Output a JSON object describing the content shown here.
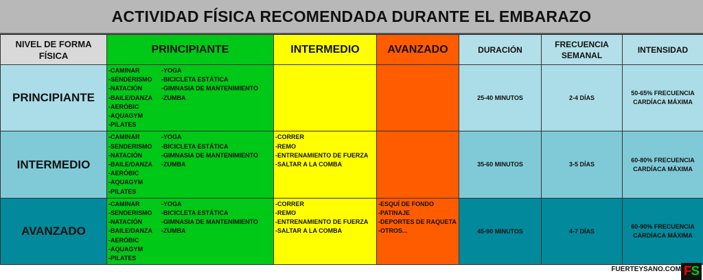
{
  "title": "ACTIVIDAD FÍSICA RECOMENDADA DURANTE EL EMBARAZO",
  "headers": [
    "NIVEL DE FORMA FÍSICA",
    "PRINCIPIANTE",
    "INTERMEDIO",
    "AVANZADO",
    "DURACIÓN",
    "FRECUENCIA SEMANAL",
    "INTENSIDAD"
  ],
  "colors": {
    "principiante": "#00c817",
    "intermedio": "#ffff00",
    "avanzado": "#ff5c00"
  },
  "lists": {
    "principiante_a": [
      "-CAMINAR",
      "-SENDERISMO",
      "-NATACIÓN",
      "-BAILE/DANZA",
      "-AERÓBIC",
      "-AQUAGYM",
      "-PILATES"
    ],
    "principiante_b": [
      "-YOGA",
      "-BICICLETA ESTÁTICA",
      "-GIMNASIA DE MANTENIMIENTO",
      "-ZUMBA"
    ],
    "intermedio": [
      "-CORRER",
      "-REMO",
      "-ENTRENAMIENTO DE FUERZA",
      "-SALTAR A LA COMBA"
    ],
    "avanzado": [
      "-ESQUÍ DE FONDO",
      "-PATINAJE",
      "-DEPORTES DE RAQUETA",
      "-OTROS..."
    ]
  },
  "rows": [
    {
      "level": "PRINCIPIANTE",
      "duracion": "25-40 MINUTOS",
      "frecuencia": "2-4 DÍAS",
      "intensidad": "50-65% FRECUENCIA CARDÍACA MÁXIMA"
    },
    {
      "level": "INTERMEDIO",
      "duracion": "35-60 MINUTOS",
      "frecuencia": "3-5 DÍAS",
      "intensidad": "60-80% FRECUENCIA CARDÍACA MÁXIMA"
    },
    {
      "level": "AVANZADO",
      "duracion": "45-90 MINUTOS",
      "frecuencia": "4-7 DÍAS",
      "intensidad": "60-90% FRECUENCIA CARDÍACA MÁXIMA"
    }
  ],
  "footer": {
    "site": "FUERTEYSANO.COM",
    "logo": "FS"
  }
}
